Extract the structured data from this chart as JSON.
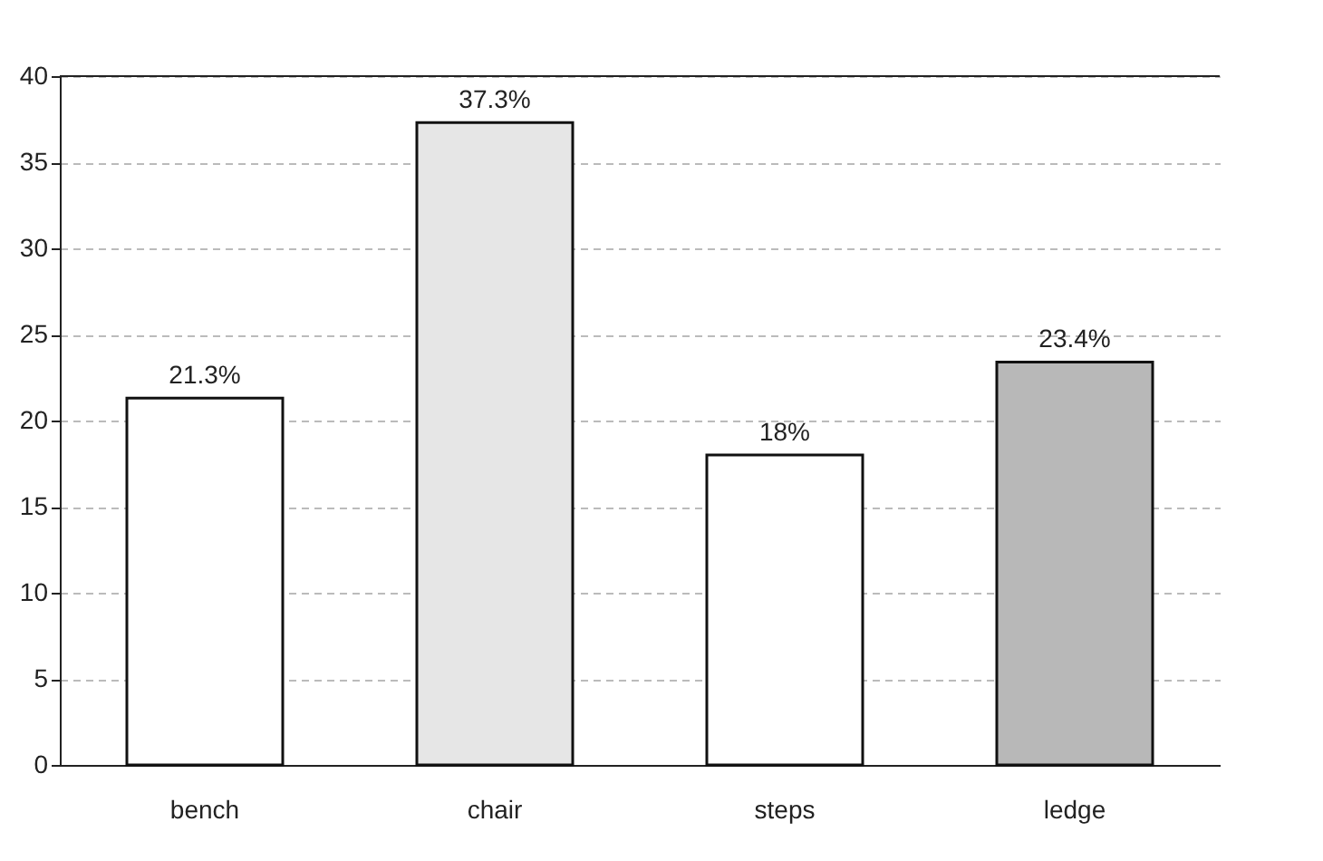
{
  "chart_data": {
    "type": "bar",
    "categories": [
      "bench",
      "chair",
      "steps",
      "ledge"
    ],
    "values": [
      21.3,
      37.3,
      18,
      23.4
    ],
    "value_labels": [
      "21.3%",
      "37.3%",
      "18%",
      "23.4%"
    ],
    "colors": [
      "#ffffff",
      "#e6e6e6",
      "#ffffff",
      "#b8b8b8"
    ],
    "ylim": [
      0,
      40
    ],
    "yticks": [
      0,
      5,
      10,
      15,
      20,
      25,
      30,
      35,
      40
    ],
    "grid": "y",
    "legend": false
  }
}
